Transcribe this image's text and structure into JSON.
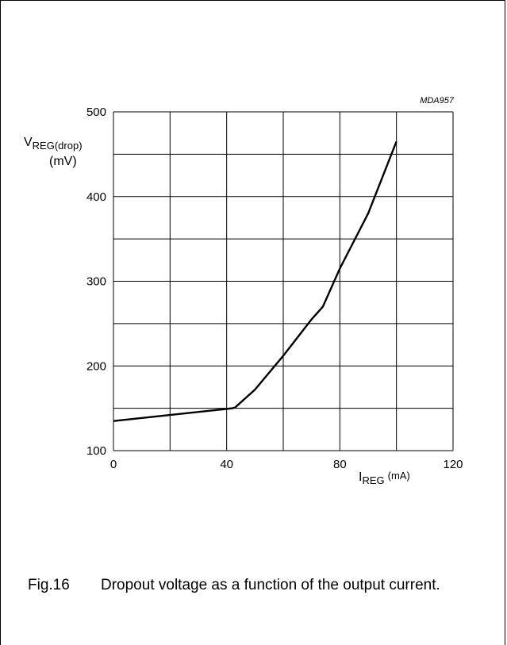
{
  "chart_data": {
    "type": "line",
    "figure_code": "MDA957",
    "ylabel": {
      "main": "V",
      "sub": "REG(drop)",
      "unit": "(mV)"
    },
    "xlabel": {
      "main": "I",
      "sub": "REG",
      "unit": "(mA)"
    },
    "xlim": [
      0,
      120
    ],
    "ylim": [
      100,
      500
    ],
    "x_ticks": [
      0,
      40,
      80,
      120
    ],
    "y_ticks": [
      100,
      200,
      300,
      400,
      500
    ],
    "x_grid_step": 20,
    "y_grid_step": 50,
    "grid": true,
    "series": [
      {
        "x": [
          0,
          42,
          43,
          50,
          60,
          70,
          74,
          80,
          90,
          100
        ],
        "y": [
          135,
          150,
          151,
          172,
          212,
          255,
          270,
          315,
          380,
          465
        ]
      }
    ]
  },
  "caption": {
    "figure_number": "Fig.16",
    "text": "Dropout voltage as a function of the output current."
  }
}
